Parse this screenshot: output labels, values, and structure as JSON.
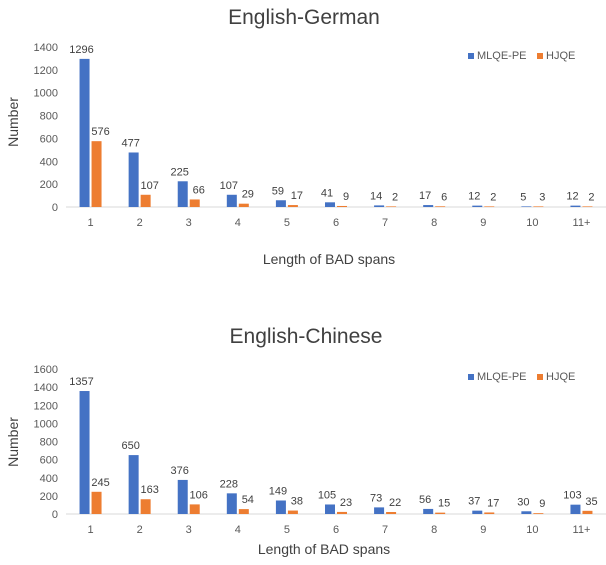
{
  "colors": {
    "series_1": "#4472C4",
    "series_2": "#ED7D31",
    "axis": "#D9D9D9"
  },
  "chart_data": [
    {
      "type": "bar",
      "title": "English-German",
      "xlabel": "Length of BAD spans",
      "ylabel": "Number",
      "categories": [
        "1",
        "2",
        "3",
        "4",
        "5",
        "6",
        "7",
        "8",
        "9",
        "10",
        "11+"
      ],
      "ylim": [
        0,
        1400
      ],
      "yticks": [
        "0",
        "200",
        "400",
        "600",
        "800",
        "1000",
        "1200",
        "1400"
      ],
      "grid": false,
      "legend": "top-right",
      "series": [
        {
          "name": "MLQE-PE",
          "values": [
            1296,
            477,
            225,
            107,
            59,
            41,
            14,
            17,
            12,
            5,
            12
          ]
        },
        {
          "name": "HJQE",
          "values": [
            576,
            107,
            66,
            29,
            17,
            9,
            2,
            6,
            2,
            3,
            2
          ]
        }
      ]
    },
    {
      "type": "bar",
      "title": "English-Chinese",
      "xlabel": "Length of BAD spans",
      "ylabel": "Number",
      "categories": [
        "1",
        "2",
        "3",
        "4",
        "5",
        "6",
        "7",
        "8",
        "9",
        "10",
        "11+"
      ],
      "ylim": [
        0,
        1600
      ],
      "yticks": [
        "0",
        "200",
        "400",
        "600",
        "800",
        "1000",
        "1200",
        "1400",
        "1600"
      ],
      "grid": false,
      "legend": "top-right",
      "series": [
        {
          "name": "MLQE-PE",
          "values": [
            1357,
            650,
            376,
            228,
            149,
            105,
            73,
            56,
            37,
            30,
            103
          ]
        },
        {
          "name": "HJQE",
          "values": [
            245,
            163,
            106,
            54,
            38,
            23,
            22,
            15,
            17,
            9,
            35
          ]
        }
      ]
    }
  ]
}
